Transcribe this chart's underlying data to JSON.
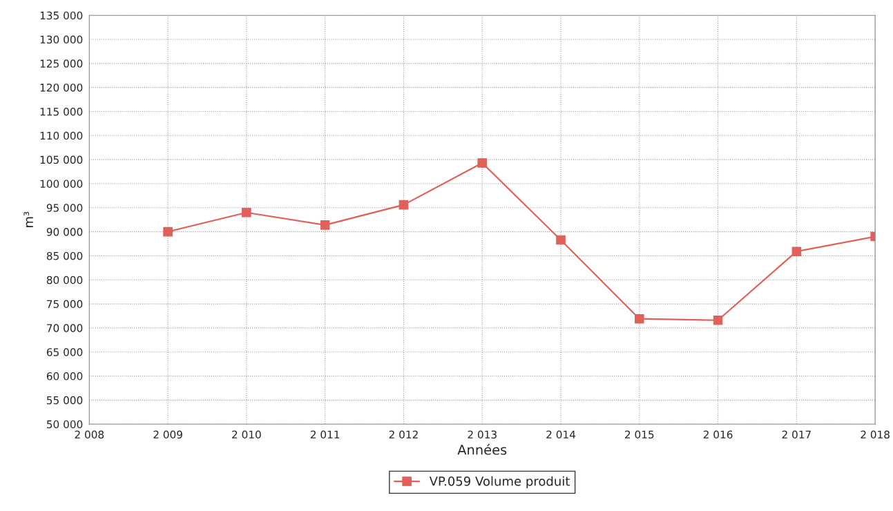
{
  "chart_data": {
    "type": "line",
    "xlabel": "Années",
    "ylabel": "m³",
    "x": [
      2009,
      2010,
      2011,
      2012,
      2013,
      2014,
      2015,
      2016,
      2017,
      2018
    ],
    "series": [
      {
        "name": "VP.059 Volume produit",
        "color": "#e0605a",
        "values": [
          90000,
          94000,
          91400,
          95600,
          104300,
          88300,
          71900,
          71600,
          85900,
          89000
        ]
      }
    ],
    "xlim": [
      2008,
      2018
    ],
    "xticks": [
      {
        "value": 2008,
        "label": "2 008"
      },
      {
        "value": 2009,
        "label": "2 009"
      },
      {
        "value": 2010,
        "label": "2 010"
      },
      {
        "value": 2011,
        "label": "2 011"
      },
      {
        "value": 2012,
        "label": "2 012"
      },
      {
        "value": 2013,
        "label": "2 013"
      },
      {
        "value": 2014,
        "label": "2 014"
      },
      {
        "value": 2015,
        "label": "2 015"
      },
      {
        "value": 2016,
        "label": "2 016"
      },
      {
        "value": 2017,
        "label": "2 017"
      },
      {
        "value": 2018,
        "label": "2 018"
      }
    ],
    "ylim": [
      50000,
      135000
    ],
    "yticks": [
      {
        "value": 50000,
        "label": "50 000"
      },
      {
        "value": 55000,
        "label": "55 000"
      },
      {
        "value": 60000,
        "label": "60 000"
      },
      {
        "value": 65000,
        "label": "65 000"
      },
      {
        "value": 70000,
        "label": "70 000"
      },
      {
        "value": 75000,
        "label": "75 000"
      },
      {
        "value": 80000,
        "label": "80 000"
      },
      {
        "value": 85000,
        "label": "85 000"
      },
      {
        "value": 90000,
        "label": "90 000"
      },
      {
        "value": 95000,
        "label": "95 000"
      },
      {
        "value": 100000,
        "label": "100 000"
      },
      {
        "value": 105000,
        "label": "105 000"
      },
      {
        "value": 110000,
        "label": "110 000"
      },
      {
        "value": 115000,
        "label": "115 000"
      },
      {
        "value": 120000,
        "label": "120 000"
      },
      {
        "value": 125000,
        "label": "125 000"
      },
      {
        "value": 130000,
        "label": "130 000"
      },
      {
        "value": 135000,
        "label": "135 000"
      }
    ],
    "grid": true,
    "legend": "bottom",
    "marker": "square",
    "line_style": "solid"
  }
}
